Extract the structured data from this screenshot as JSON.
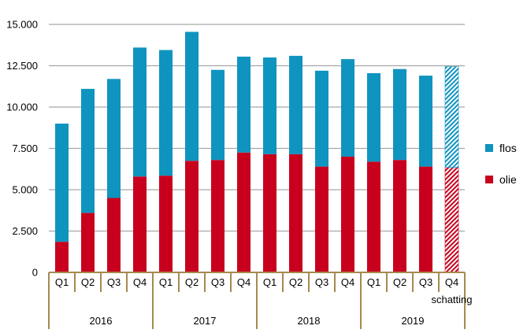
{
  "chart_data": {
    "type": "bar",
    "stacked": true,
    "categories": [
      "Q1",
      "Q2",
      "Q3",
      "Q4",
      "Q1",
      "Q2",
      "Q3",
      "Q4",
      "Q1",
      "Q2",
      "Q3",
      "Q4",
      "Q1",
      "Q2",
      "Q3",
      "Q4"
    ],
    "groups": [
      {
        "label": "2016",
        "start": 0,
        "end": 3
      },
      {
        "label": "2017",
        "start": 4,
        "end": 7
      },
      {
        "label": "2018",
        "start": 8,
        "end": 11
      },
      {
        "label": "2019",
        "start": 12,
        "end": 15
      }
    ],
    "sublabels": [
      {
        "index": 15,
        "text": "schatting"
      }
    ],
    "estimate_index": 15,
    "series": [
      {
        "name": "olie",
        "color": "#c8001e",
        "values": [
          1850,
          3600,
          4500,
          5800,
          5850,
          6750,
          6800,
          7250,
          7150,
          7150,
          6400,
          7000,
          6700,
          6800,
          6400,
          6350
        ]
      },
      {
        "name": "flos",
        "color": "#0f94bf",
        "values": [
          7150,
          7500,
          7200,
          7800,
          7600,
          7800,
          5450,
          5800,
          5850,
          5950,
          5800,
          5900,
          5350,
          5500,
          5500,
          6100
        ]
      }
    ],
    "y_ticks": [
      "0",
      "2.500",
      "5.000",
      "7.500",
      "10.000",
      "12.500",
      "15.000"
    ],
    "ylim": [
      0,
      15000
    ],
    "grid": true,
    "legend_position": "right",
    "xlabel": "",
    "ylabel": "",
    "title": ""
  }
}
